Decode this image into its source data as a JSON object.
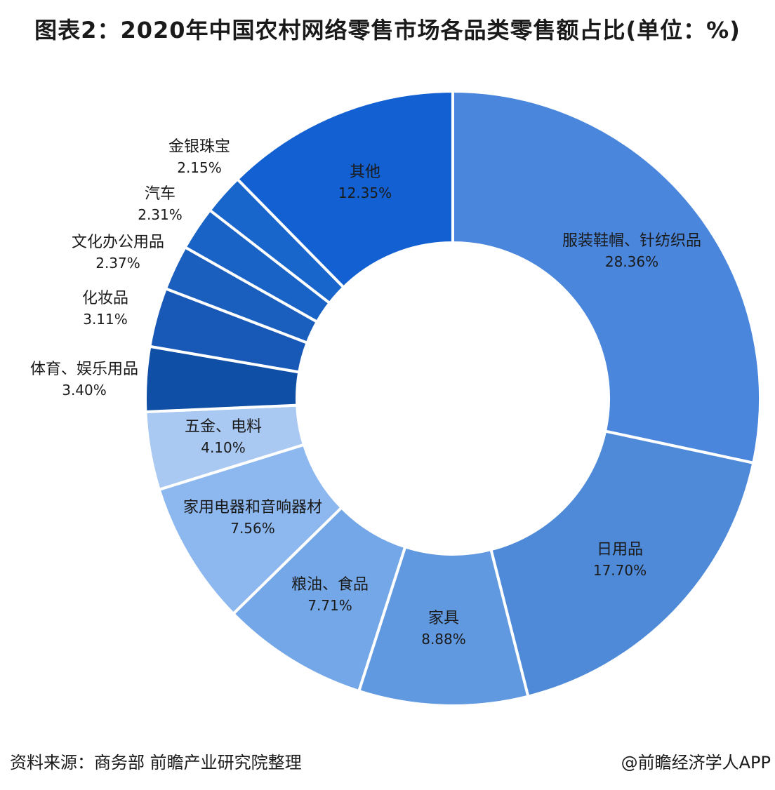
{
  "title": "图表2：2020年中国农村网络零售市场各品类零售额占比(单位：%)",
  "source": "资料来源：商务部 前瞻产业研究院整理",
  "credit": "@前瞻经济学人APP",
  "chart_data": {
    "type": "pie",
    "donut": true,
    "categories": [
      "服装鞋帽、针纺织品",
      "日用品",
      "家具",
      "粮油、食品",
      "家用电器和音响器材",
      "五金、电料",
      "体育、娱乐用品",
      "化妆品",
      "文化办公用品",
      "汽车",
      "金银珠宝",
      "其他"
    ],
    "values": [
      28.36,
      17.7,
      8.88,
      7.71,
      7.56,
      4.1,
      3.4,
      3.11,
      2.37,
      2.31,
      2.15,
      12.35
    ],
    "value_labels": [
      "28.36%",
      "17.70%",
      "8.88%",
      "7.71%",
      "7.56%",
      "4.10%",
      "3.40%",
      "3.11%",
      "2.37%",
      "2.31%",
      "2.15%",
      "12.35%"
    ],
    "colors": [
      "#4a86dc",
      "#4f8ad9",
      "#6199e1",
      "#74a7e8",
      "#8db8ef",
      "#a9c9f3",
      "#0f4fa5",
      "#1858b7",
      "#1b5fbe",
      "#1a63c6",
      "#1865cb",
      "#1260d1"
    ],
    "legend": "none"
  }
}
